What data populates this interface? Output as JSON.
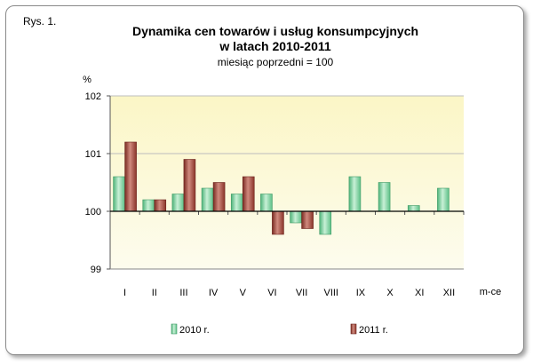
{
  "figure_label": "Rys. 1.",
  "chart_data": {
    "type": "bar",
    "title": "Dynamika cen towarów i usług konsumpcyjnych",
    "title_line2": "w latach 2010-2011",
    "subtitle": "miesiąc poprzedni = 100",
    "ylabel": "%",
    "xlabel": "m-ce",
    "ylim": [
      99,
      102
    ],
    "yticks": [
      99,
      100,
      101,
      102
    ],
    "baseline": 100,
    "categories": [
      "I",
      "II",
      "III",
      "IV",
      "V",
      "VI",
      "VII",
      "VIII",
      "IX",
      "X",
      "XI",
      "XII"
    ],
    "series": [
      {
        "name": "2010 r.",
        "color": "#7fd3a0",
        "values": [
          100.6,
          100.2,
          100.3,
          100.4,
          100.3,
          100.3,
          99.8,
          99.6,
          100.6,
          100.5,
          100.1,
          100.4
        ]
      },
      {
        "name": "2011 r.",
        "color": "#a0443a",
        "values": [
          101.2,
          100.2,
          100.9,
          100.5,
          100.6,
          99.6,
          99.7,
          null,
          null,
          null,
          null,
          null
        ]
      }
    ],
    "grid": true,
    "legend_position": "bottom"
  }
}
